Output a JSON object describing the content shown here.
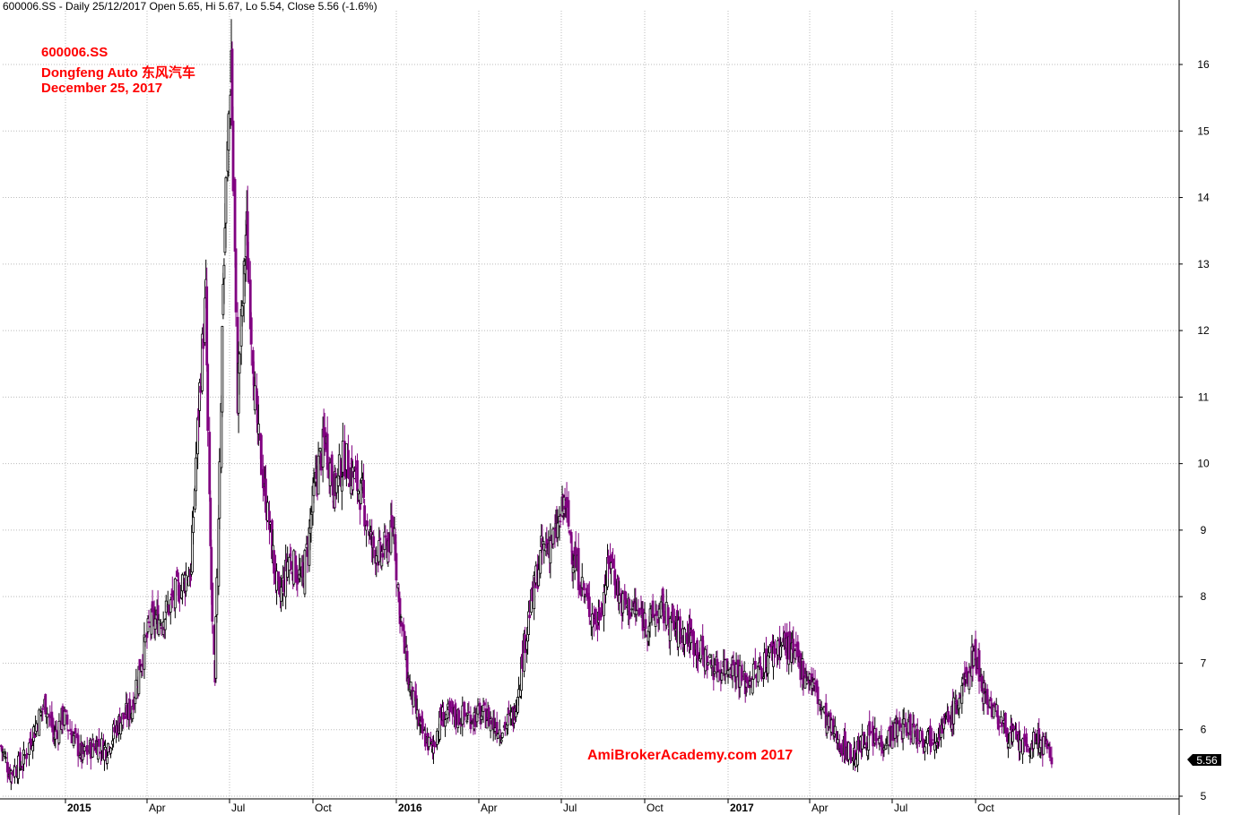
{
  "header": {
    "text": "600006.SS - Daily 25/12/2017 Open 5.65, Hi 5.67, Lo 5.54, Close 5.56 (-1.6%)"
  },
  "annotation": {
    "line1": "600006.SS",
    "line2": "Dongfeng Auto 东风汽车",
    "line3": "December 25, 2017"
  },
  "watermark": "AmiBrokerAcademy.com  2017",
  "last_price_label": "5.56",
  "colors": {
    "up": "#000000",
    "down": "#800080",
    "grid": "#bbbbbb",
    "price_badge": "#000000"
  },
  "chart_data": {
    "type": "candlestick",
    "title": "600006.SS",
    "ylim": [
      5,
      16.5
    ],
    "y_ticks": [
      5,
      6,
      7,
      8,
      9,
      10,
      11,
      12,
      13,
      14,
      15,
      16
    ],
    "grid": true,
    "x_ticks": [
      {
        "label": "2015",
        "date": "2015-01-01",
        "bold": true
      },
      {
        "label": "Apr",
        "date": "2015-04-01",
        "bold": false
      },
      {
        "label": "Jul",
        "date": "2015-07-01",
        "bold": false
      },
      {
        "label": "Oct",
        "date": "2015-10-01",
        "bold": false
      },
      {
        "label": "2016",
        "date": "2016-01-01",
        "bold": true
      },
      {
        "label": "Apr",
        "date": "2016-04-01",
        "bold": false
      },
      {
        "label": "Jul",
        "date": "2016-07-01",
        "bold": false
      },
      {
        "label": "Oct",
        "date": "2016-10-01",
        "bold": false
      },
      {
        "label": "2017",
        "date": "2017-01-01",
        "bold": true
      },
      {
        "label": "Apr",
        "date": "2017-04-01",
        "bold": false
      },
      {
        "label": "Jul",
        "date": "2017-07-01",
        "bold": false
      },
      {
        "label": "Oct",
        "date": "2017-10-01",
        "bold": false
      }
    ],
    "close_series": {
      "name": "Close",
      "points": [
        [
          "2014-10-22",
          5.75
        ],
        [
          "2014-11-01",
          5.35
        ],
        [
          "2014-11-15",
          5.5
        ],
        [
          "2014-11-28",
          6.0
        ],
        [
          "2014-12-10",
          6.4
        ],
        [
          "2014-12-20",
          5.9
        ],
        [
          "2014-12-30",
          6.2
        ],
        [
          "2015-01-10",
          5.9
        ],
        [
          "2015-01-20",
          5.6
        ],
        [
          "2015-02-05",
          5.8
        ],
        [
          "2015-02-15",
          5.7
        ],
        [
          "2015-03-01",
          6.1
        ],
        [
          "2015-03-15",
          6.3
        ],
        [
          "2015-03-25",
          7.0
        ],
        [
          "2015-04-05",
          7.6
        ],
        [
          "2015-04-20",
          7.7
        ],
        [
          "2015-05-05",
          8.1
        ],
        [
          "2015-05-20",
          8.4
        ],
        [
          "2015-05-28",
          10.8
        ],
        [
          "2015-06-05",
          12.5
        ],
        [
          "2015-06-10",
          8.7
        ],
        [
          "2015-06-15",
          6.6
        ],
        [
          "2015-06-25",
          13.0
        ],
        [
          "2015-07-03",
          16.2
        ],
        [
          "2015-07-10",
          11.0
        ],
        [
          "2015-07-20",
          13.5
        ],
        [
          "2015-07-31",
          10.6
        ],
        [
          "2015-08-10",
          9.5
        ],
        [
          "2015-08-25",
          7.9
        ],
        [
          "2015-09-05",
          8.6
        ],
        [
          "2015-09-20",
          8.2
        ],
        [
          "2015-10-05",
          9.8
        ],
        [
          "2015-10-15",
          10.4
        ],
        [
          "2015-10-25",
          9.6
        ],
        [
          "2015-11-05",
          10.1
        ],
        [
          "2015-11-15",
          9.8
        ],
        [
          "2015-11-25",
          9.5
        ],
        [
          "2015-12-05",
          8.8
        ],
        [
          "2015-12-15",
          8.6
        ],
        [
          "2015-12-30",
          9.0
        ],
        [
          "2016-01-05",
          7.8
        ],
        [
          "2016-01-15",
          6.7
        ],
        [
          "2016-01-28",
          6.0
        ],
        [
          "2016-02-10",
          5.7
        ],
        [
          "2016-02-20",
          6.2
        ],
        [
          "2016-04-10",
          6.2
        ],
        [
          "2016-04-25",
          6.0
        ],
        [
          "2016-05-10",
          6.2
        ],
        [
          "2016-05-25",
          7.6
        ],
        [
          "2016-06-10",
          8.7
        ],
        [
          "2016-06-25",
          8.9
        ],
        [
          "2016-07-05",
          9.4
        ],
        [
          "2016-07-15",
          8.6
        ],
        [
          "2016-07-30",
          7.9
        ],
        [
          "2016-08-10",
          7.6
        ],
        [
          "2016-08-25",
          8.6
        ],
        [
          "2016-09-05",
          7.9
        ],
        [
          "2016-09-20",
          7.8
        ],
        [
          "2016-10-05",
          7.6
        ],
        [
          "2016-10-20",
          7.8
        ],
        [
          "2016-11-05",
          7.5
        ],
        [
          "2016-11-20",
          7.4
        ],
        [
          "2016-12-05",
          7.1
        ],
        [
          "2016-12-20",
          6.9
        ],
        [
          "2017-01-05",
          7.0
        ],
        [
          "2017-01-20",
          6.7
        ],
        [
          "2017-02-05",
          6.9
        ],
        [
          "2017-02-20",
          7.2
        ],
        [
          "2017-03-05",
          7.3
        ],
        [
          "2017-03-20",
          7.0
        ],
        [
          "2017-04-05",
          6.7
        ],
        [
          "2017-04-20",
          6.1
        ],
        [
          "2017-05-05",
          5.8
        ],
        [
          "2017-05-20",
          5.6
        ],
        [
          "2017-06-05",
          5.9
        ],
        [
          "2017-06-20",
          5.8
        ],
        [
          "2017-07-05",
          6.0
        ],
        [
          "2017-07-20",
          6.05
        ],
        [
          "2017-08-05",
          5.9
        ],
        [
          "2017-08-20",
          5.95
        ],
        [
          "2017-09-05",
          6.2
        ],
        [
          "2017-09-20",
          6.7
        ],
        [
          "2017-09-30",
          7.2
        ],
        [
          "2017-10-10",
          6.6
        ],
        [
          "2017-10-25",
          6.2
        ],
        [
          "2017-11-10",
          5.9
        ],
        [
          "2017-11-25",
          5.7
        ],
        [
          "2017-12-10",
          5.85
        ],
        [
          "2017-12-25",
          5.56
        ]
      ]
    }
  }
}
